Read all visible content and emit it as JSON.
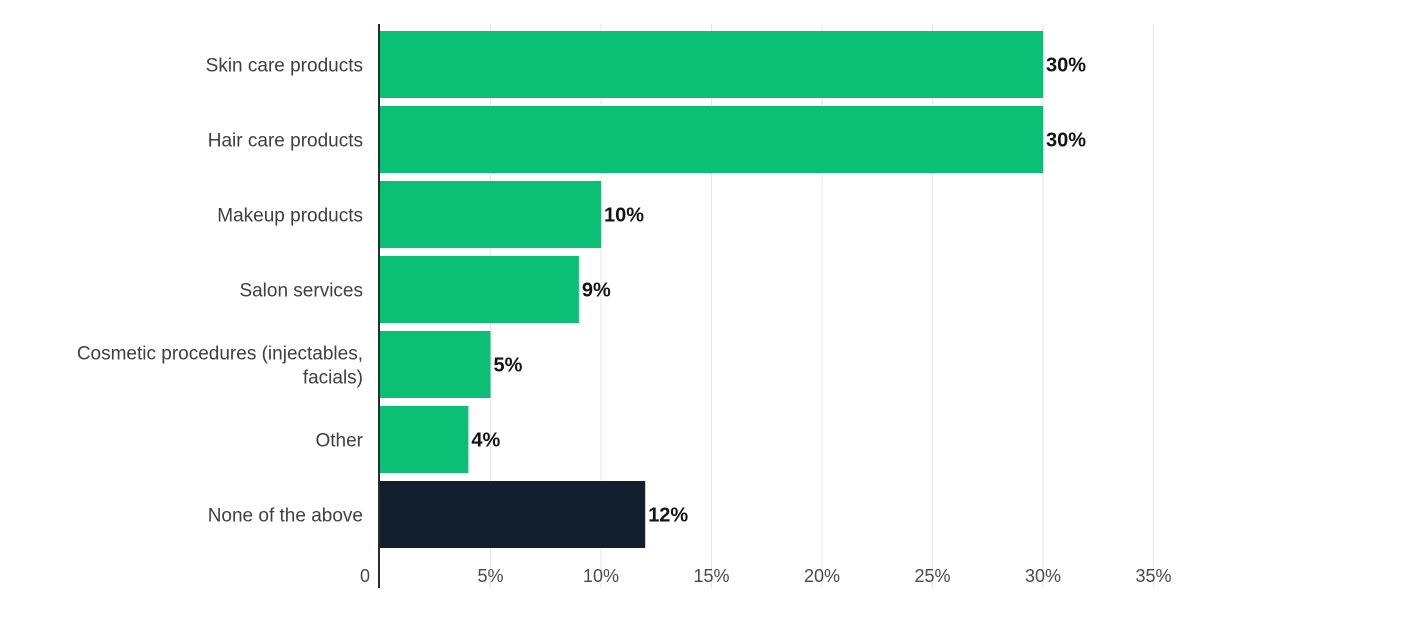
{
  "chart_data": {
    "type": "bar",
    "orientation": "horizontal",
    "categories": [
      [
        "Skin care products"
      ],
      [
        "Hair care products"
      ],
      [
        "Makeup products"
      ],
      [
        "Salon services"
      ],
      [
        "Cosmetic procedures (injectables,",
        "facials)"
      ],
      [
        "Other"
      ],
      [
        "None of the above"
      ]
    ],
    "values": [
      30,
      30,
      10,
      9,
      5,
      4,
      12
    ],
    "value_labels": [
      "30%",
      "30%",
      "10%",
      "9%",
      "5%",
      "4%",
      "12%"
    ],
    "bar_colors": [
      "#0bbf75",
      "#0bbf75",
      "#0bbf75",
      "#0bbf75",
      "#0bbf75",
      "#0bbf75",
      "#101e2e"
    ],
    "xlim": [
      0,
      35
    ],
    "xticks": [
      0,
      5,
      10,
      15,
      20,
      25,
      30,
      35
    ],
    "xtick_labels": [
      "0",
      "5%",
      "10%",
      "15%",
      "20%",
      "25%",
      "30%",
      "35%"
    ],
    "grid": true
  }
}
